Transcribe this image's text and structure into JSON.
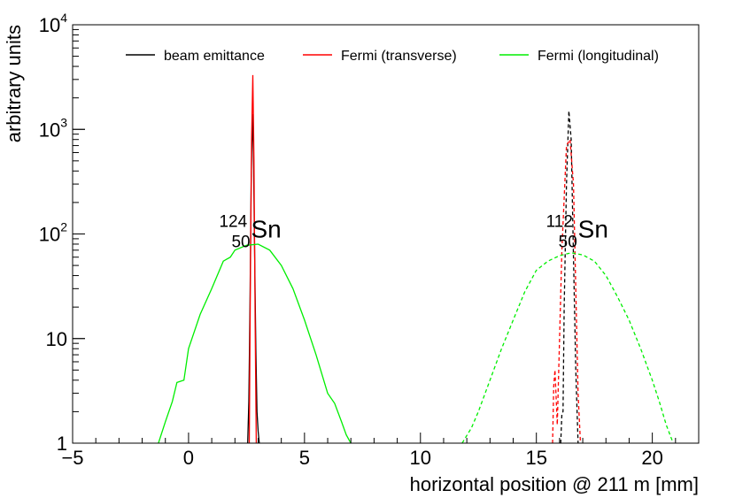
{
  "chart_data": {
    "type": "line",
    "title": "",
    "xlabel": "horizontal position @ 211 m [mm]",
    "ylabel": "arbitrary units",
    "xlim": [
      -5,
      22
    ],
    "ylim": [
      1,
      10000
    ],
    "yscale": "log",
    "grid": false,
    "legend_position": "top",
    "x_ticks": [
      -5,
      0,
      5,
      10,
      15,
      20
    ],
    "x_tick_labels": [
      "−5",
      "0",
      "5",
      "10",
      "15",
      "20"
    ],
    "y_ticks": [
      1,
      10,
      100,
      1000,
      10000
    ],
    "y_tick_labels": [
      {
        "base": "1",
        "exp": ""
      },
      {
        "base": "10",
        "exp": ""
      },
      {
        "base": "10",
        "exp": "2"
      },
      {
        "base": "10",
        "exp": "3"
      },
      {
        "base": "10",
        "exp": "4"
      }
    ],
    "legend": [
      {
        "label": "beam emittance",
        "color": "#000000"
      },
      {
        "label": "Fermi (transverse)",
        "color": "#ff0000"
      },
      {
        "label": "Fermi (longitudinal)",
        "color": "#00ee00"
      }
    ],
    "annotations": [
      {
        "mass": "124",
        "charge": "50",
        "symbol": "Sn",
        "x": 1.7,
        "y": 100
      },
      {
        "mass": "112",
        "charge": "50",
        "symbol": "Sn",
        "x": 15.8,
        "y": 100
      }
    ],
    "series": [
      {
        "name": "beam emittance",
        "isotope": "124Sn",
        "color": "#000000",
        "dash": false,
        "x": [
          2.55,
          2.6,
          2.65,
          2.7,
          2.75,
          2.8,
          2.85,
          2.9,
          2.95,
          3.0,
          3.05
        ],
        "y": [
          1,
          2.5,
          20,
          300,
          1400,
          600,
          60,
          8,
          2,
          1.3,
          1
        ]
      },
      {
        "name": "Fermi (transverse)",
        "isotope": "124Sn",
        "color": "#ff0000",
        "dash": false,
        "x": [
          2.62,
          2.67,
          2.72,
          2.77,
          2.82,
          2.87,
          2.92
        ],
        "y": [
          1,
          40,
          800,
          3300,
          500,
          15,
          1
        ]
      },
      {
        "name": "Fermi (longitudinal)",
        "isotope": "124Sn",
        "color": "#00ee00",
        "dash": false,
        "x": [
          -1.3,
          -1.0,
          -0.7,
          -0.5,
          -0.2,
          0.0,
          0.5,
          1.0,
          1.5,
          1.8,
          2.0,
          2.5,
          3.0,
          3.5,
          4.0,
          4.5,
          5.0,
          5.5,
          6.0,
          6.3,
          6.6,
          6.8,
          7.0
        ],
        "y": [
          1,
          1.6,
          2.5,
          3.8,
          4,
          8,
          17,
          30,
          55,
          60,
          70,
          78,
          80,
          70,
          50,
          30,
          15,
          7,
          3,
          2.4,
          1.6,
          1.2,
          1
        ]
      },
      {
        "name": "beam emittance",
        "isotope": "112Sn",
        "color": "#000000",
        "dash": true,
        "x": [
          16.05,
          16.1,
          16.15,
          16.2,
          16.3,
          16.4,
          16.5,
          16.6,
          16.7,
          16.8
        ],
        "y": [
          1,
          1.9,
          2,
          20,
          300,
          1500,
          800,
          60,
          5,
          1
        ]
      },
      {
        "name": "Fermi (transverse)",
        "isotope": "112Sn",
        "color": "#ff0000",
        "dash": true,
        "x": [
          15.7,
          15.75,
          15.8,
          15.9,
          16.0,
          16.1,
          16.3,
          16.45,
          16.6,
          16.7,
          16.8,
          16.9
        ],
        "y": [
          1,
          3.5,
          5,
          1.5,
          10,
          70,
          700,
          800,
          300,
          30,
          3,
          1
        ]
      },
      {
        "name": "Fermi (longitudinal)",
        "isotope": "112Sn",
        "color": "#00ee00",
        "dash": true,
        "x": [
          11.8,
          12.2,
          12.5,
          13.0,
          13.5,
          14.0,
          14.5,
          15.0,
          15.5,
          16.0,
          16.5,
          17.0,
          17.5,
          18.0,
          18.5,
          19.0,
          19.5,
          20.0,
          20.3,
          20.6,
          20.9
        ],
        "y": [
          1,
          1.4,
          2,
          4,
          8,
          15,
          28,
          45,
          55,
          62,
          66,
          63,
          55,
          40,
          25,
          15,
          8,
          4,
          2.5,
          1.5,
          1
        ]
      }
    ]
  }
}
